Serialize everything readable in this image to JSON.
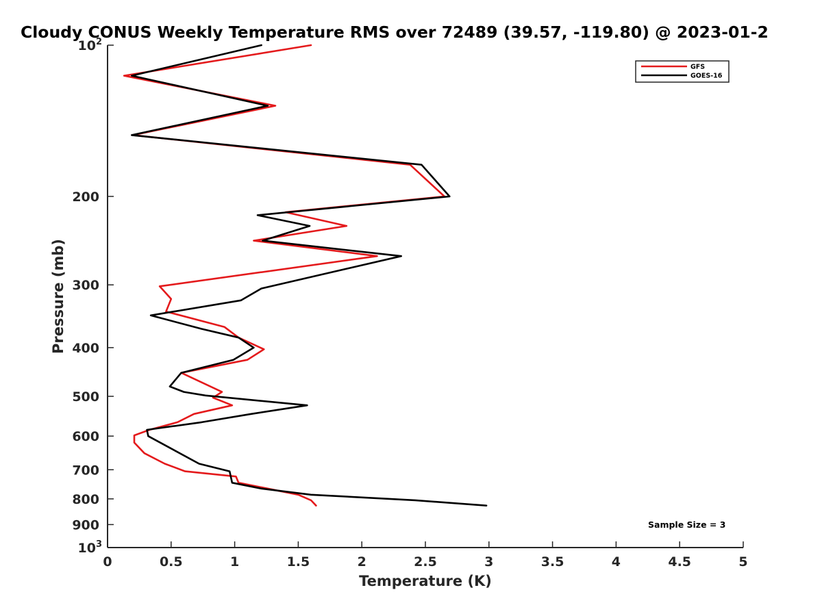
{
  "chart_data": {
    "type": "line",
    "title": "Cloudy CONUS Weekly Temperature RMS over 72489 (39.57, -119.80) @ 2023-01-2",
    "xlabel": "Temperature (K)",
    "ylabel": "Pressure (mb)",
    "xlim": [
      0,
      5
    ],
    "ylim": [
      100,
      1000
    ],
    "y_scale": "log",
    "y_reversed": true,
    "x_ticks": [
      "0",
      "0.5",
      "1",
      "1.5",
      "2",
      "2.5",
      "3",
      "3.5",
      "4",
      "4.5",
      "5"
    ],
    "y_ticks": [
      {
        "value": 100,
        "base": "10",
        "exp": "2"
      },
      {
        "value": 200,
        "label": "200"
      },
      {
        "value": 300,
        "label": "300"
      },
      {
        "value": 400,
        "label": "400"
      },
      {
        "value": 500,
        "label": "500"
      },
      {
        "value": 600,
        "label": "600"
      },
      {
        "value": 700,
        "label": "700"
      },
      {
        "value": 800,
        "label": "800"
      },
      {
        "value": 900,
        "label": "900"
      },
      {
        "value": 1000,
        "base": "10",
        "exp": "3"
      }
    ],
    "grid": false,
    "legend_position": "top-right",
    "annotation": "Sample Size = 3",
    "series": [
      {
        "name": "GFS",
        "color": "#e41a1c",
        "points": [
          [
            1.6,
            100
          ],
          [
            0.13,
            115
          ],
          [
            1.32,
            132
          ],
          [
            0.2,
            151
          ],
          [
            2.38,
            173
          ],
          [
            2.65,
            200
          ],
          [
            1.4,
            215
          ],
          [
            1.88,
            229
          ],
          [
            1.15,
            245
          ],
          [
            2.12,
            263
          ],
          [
            0.41,
            302
          ],
          [
            0.5,
            320
          ],
          [
            0.46,
            339
          ],
          [
            0.92,
            364
          ],
          [
            1.03,
            382
          ],
          [
            1.23,
            403
          ],
          [
            1.1,
            423
          ],
          [
            0.58,
            449
          ],
          [
            0.9,
            490
          ],
          [
            0.83,
            503
          ],
          [
            0.98,
            521
          ],
          [
            0.68,
            542
          ],
          [
            0.55,
            563
          ],
          [
            0.33,
            583
          ],
          [
            0.21,
            598
          ],
          [
            0.21,
            618
          ],
          [
            0.29,
            649
          ],
          [
            0.45,
            681
          ],
          [
            0.61,
            705
          ],
          [
            1.01,
            722
          ],
          [
            1.03,
            743
          ],
          [
            1.5,
            785
          ],
          [
            1.6,
            805
          ],
          [
            1.64,
            825
          ]
        ]
      },
      {
        "name": "GOES-16",
        "color": "#000000",
        "points": [
          [
            1.21,
            100
          ],
          [
            0.19,
            115
          ],
          [
            1.26,
            132
          ],
          [
            0.19,
            151
          ],
          [
            2.47,
            173
          ],
          [
            2.69,
            200
          ],
          [
            1.18,
            218
          ],
          [
            1.59,
            229
          ],
          [
            1.22,
            245
          ],
          [
            2.31,
            263
          ],
          [
            1.21,
            305
          ],
          [
            1.05,
            322
          ],
          [
            0.34,
            345
          ],
          [
            0.74,
            367
          ],
          [
            1.03,
            382
          ],
          [
            1.15,
            400
          ],
          [
            0.99,
            423
          ],
          [
            0.58,
            449
          ],
          [
            0.49,
            478
          ],
          [
            0.6,
            490
          ],
          [
            0.77,
            498
          ],
          [
            1.57,
            521
          ],
          [
            1.13,
            542
          ],
          [
            0.74,
            563
          ],
          [
            0.31,
            583
          ],
          [
            0.32,
            600
          ],
          [
            0.72,
            681
          ],
          [
            0.96,
            705
          ],
          [
            0.98,
            743
          ],
          [
            1.21,
            763
          ],
          [
            1.6,
            785
          ],
          [
            2.42,
            805
          ],
          [
            2.98,
            825
          ]
        ]
      }
    ]
  }
}
